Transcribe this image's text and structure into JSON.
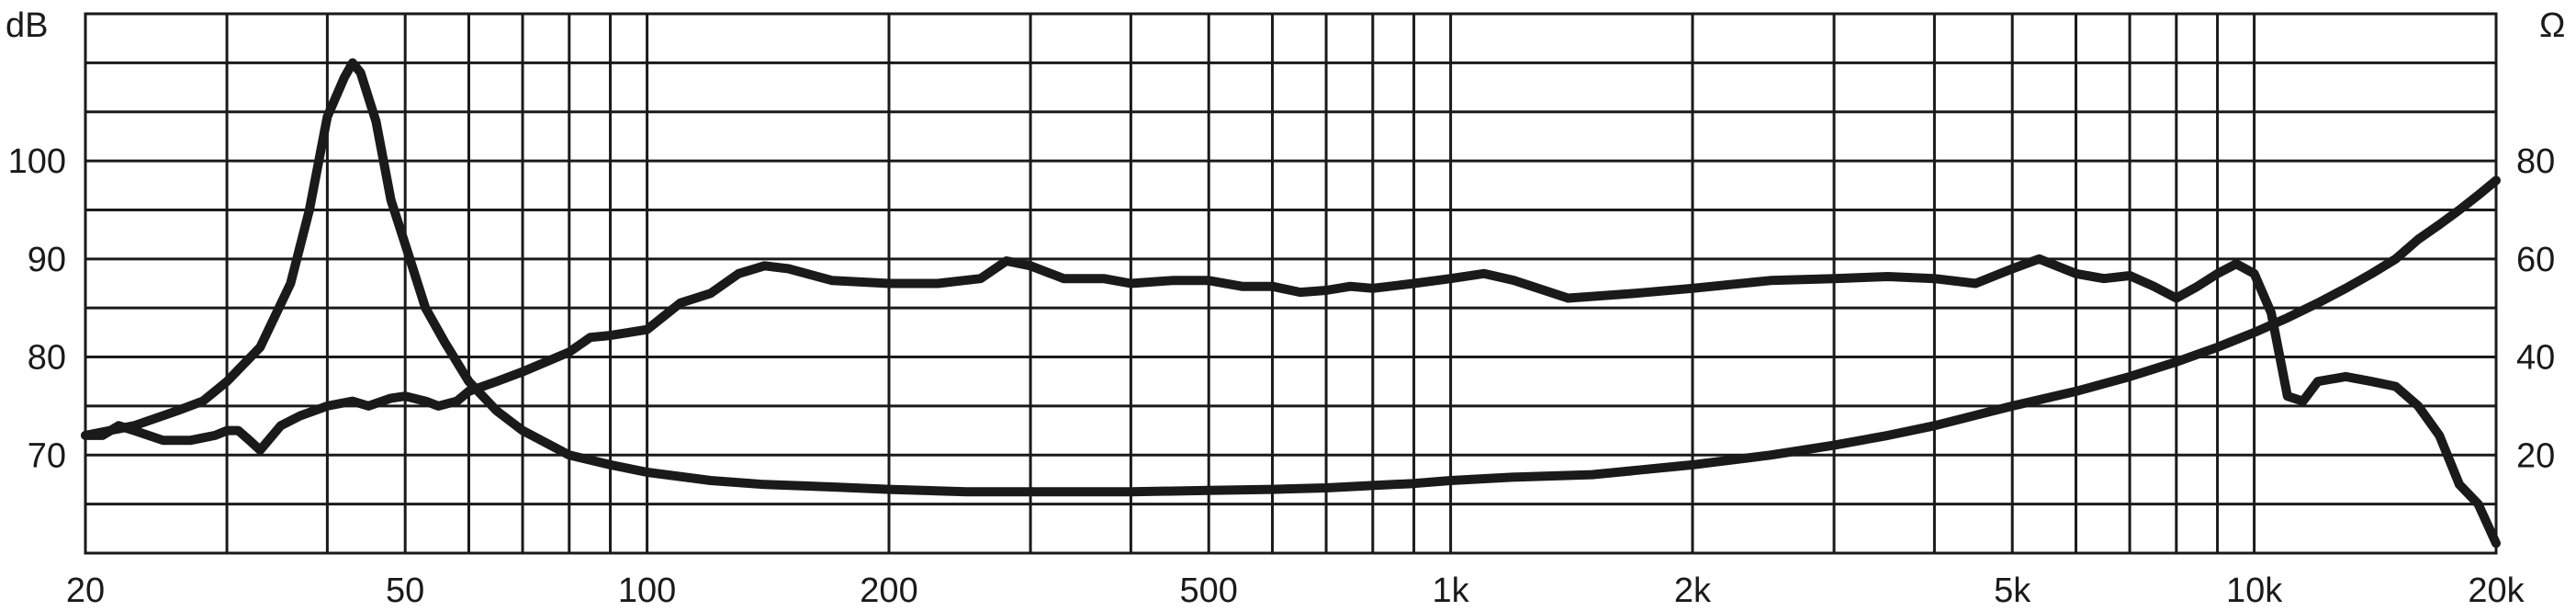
{
  "chart_data": {
    "type": "line",
    "title": "",
    "x_scale": "log",
    "xlim": [
      20,
      20000
    ],
    "ylim_left": [
      60,
      115
    ],
    "ylim_right": [
      0,
      110
    ],
    "grid": true,
    "left_unit": "dB",
    "right_unit": "Ω",
    "x_ticks": [
      {
        "value": 20,
        "label": "20"
      },
      {
        "value": 50,
        "label": "50"
      },
      {
        "value": 100,
        "label": "100"
      },
      {
        "value": 200,
        "label": "200"
      },
      {
        "value": 500,
        "label": "500"
      },
      {
        "value": 1000,
        "label": "1k"
      },
      {
        "value": 2000,
        "label": "2k"
      },
      {
        "value": 5000,
        "label": "5k"
      },
      {
        "value": 10000,
        "label": "10k"
      },
      {
        "value": 20000,
        "label": "20k"
      }
    ],
    "x_grid": [
      20,
      30,
      40,
      50,
      60,
      70,
      80,
      90,
      100,
      200,
      300,
      400,
      500,
      600,
      700,
      800,
      900,
      1000,
      2000,
      3000,
      4000,
      5000,
      6000,
      7000,
      8000,
      9000,
      10000,
      20000
    ],
    "y_left_ticks": [
      {
        "value": 70,
        "label": "70"
      },
      {
        "value": 80,
        "label": "80"
      },
      {
        "value": 90,
        "label": "90"
      },
      {
        "value": 100,
        "label": "100"
      }
    ],
    "y_right_ticks": [
      {
        "value": 20,
        "label": "20"
      },
      {
        "value": 40,
        "label": "40"
      },
      {
        "value": 60,
        "label": "60"
      },
      {
        "value": 80,
        "label": "80"
      }
    ],
    "y_grid": [
      65,
      70,
      75,
      80,
      85,
      90,
      95,
      100,
      105,
      110,
      115
    ],
    "series": [
      {
        "axis": "left",
        "unit": "dB",
        "x": [
          20,
          21,
          22,
          23,
          25,
          27,
          29,
          30,
          31,
          32,
          33,
          35,
          37,
          40,
          43,
          45,
          48,
          50,
          53,
          55,
          58,
          60,
          65,
          70,
          80,
          85,
          90,
          100,
          110,
          120,
          130,
          140,
          150,
          170,
          200,
          230,
          260,
          280,
          300,
          330,
          370,
          400,
          450,
          500,
          550,
          600,
          650,
          700,
          750,
          800,
          900,
          1000,
          1100,
          1200,
          1400,
          1700,
          2000,
          2500,
          3000,
          3500,
          4000,
          4500,
          5000,
          5400,
          6000,
          6500,
          7000,
          7500,
          8000,
          8500,
          9000,
          9500,
          10000,
          10500,
          11000,
          11500,
          12000,
          13000,
          14000,
          15000,
          16000,
          17000,
          18000,
          19000,
          20000
        ],
        "values": [
          72,
          72,
          73,
          72.5,
          71.5,
          71.5,
          72,
          72.5,
          72.5,
          71.5,
          70.5,
          73,
          74,
          75,
          75.5,
          75,
          75.8,
          76,
          75.5,
          75,
          75.5,
          76.5,
          77.5,
          78.5,
          80.5,
          82,
          82.2,
          82.8,
          85.5,
          86.5,
          88.5,
          89.3,
          89,
          87.8,
          87.5,
          87.5,
          88,
          89.8,
          89.3,
          88,
          88,
          87.5,
          87.8,
          87.8,
          87.2,
          87.2,
          86.6,
          86.8,
          87.2,
          87,
          87.5,
          88,
          88.5,
          87.8,
          86,
          86.5,
          87,
          87.8,
          88,
          88.2,
          88,
          87.5,
          89,
          90,
          88.5,
          88,
          88.3,
          87.2,
          86,
          87.2,
          88.5,
          89.5,
          88.5,
          84.5,
          76,
          75.5,
          77.5,
          78,
          77.5,
          77,
          75,
          72,
          67,
          65,
          61
        ]
      },
      {
        "axis": "right",
        "unit": "Ω",
        "x": [
          20,
          23,
          26,
          28,
          30,
          33,
          36,
          38,
          40,
          42,
          43,
          44,
          46,
          48,
          50,
          53,
          56,
          60,
          65,
          70,
          80,
          90,
          100,
          120,
          140,
          170,
          200,
          250,
          300,
          400,
          500,
          600,
          700,
          800,
          900,
          1000,
          1200,
          1500,
          2000,
          2500,
          3000,
          3500,
          4000,
          5000,
          6000,
          7000,
          8000,
          9000,
          10000,
          11000,
          12000,
          13000,
          14000,
          15000,
          16000,
          17000,
          18000,
          19000,
          20000
        ],
        "values": [
          24,
          26,
          29,
          31,
          35,
          42,
          55,
          70,
          89,
          97,
          100,
          98,
          88,
          72,
          63,
          50,
          43,
          35,
          29,
          25,
          20,
          18,
          16.5,
          14.8,
          14,
          13.5,
          13,
          12.5,
          12.5,
          12.5,
          12.8,
          13,
          13.3,
          13.8,
          14.2,
          14.8,
          15.5,
          16,
          18,
          20,
          22,
          24,
          26,
          30,
          33,
          36,
          39,
          42,
          45,
          48,
          51,
          54,
          57,
          60,
          64,
          67,
          70,
          73,
          76
        ]
      }
    ]
  }
}
